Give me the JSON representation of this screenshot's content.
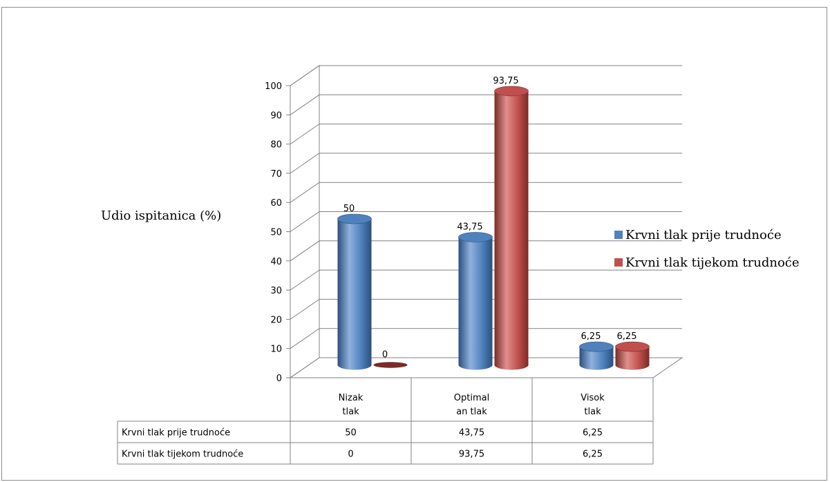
{
  "chart_data": {
    "type": "bar",
    "categories": [
      [
        "Nizak",
        "tlak"
      ],
      [
        "Optimal",
        "an tlak"
      ],
      [
        "Visok",
        "tlak"
      ]
    ],
    "series": [
      {
        "name": "Krvni tlak prije trudnoće",
        "values": [
          50,
          43.75,
          6.25
        ],
        "labels": [
          "50",
          "43,75",
          "6,25"
        ],
        "color": "#4f81bd",
        "dark": "#2c4f7c",
        "light": "#8fb1dd"
      },
      {
        "name": "Krvni tlak tijekom trudnoće",
        "values": [
          0,
          93.75,
          6.25
        ],
        "labels": [
          "0",
          "93,75",
          "6,25"
        ],
        "color": "#c0504d",
        "dark": "#7a2a28",
        "light": "#df8f8d"
      }
    ],
    "ylabel": "Udio ispitanica (%)",
    "ylim": [
      0,
      100
    ],
    "yticks": [
      0,
      10,
      20,
      30,
      40,
      50,
      60,
      70,
      80,
      90,
      100
    ],
    "grid": true,
    "legend": "right",
    "data_table": true
  }
}
